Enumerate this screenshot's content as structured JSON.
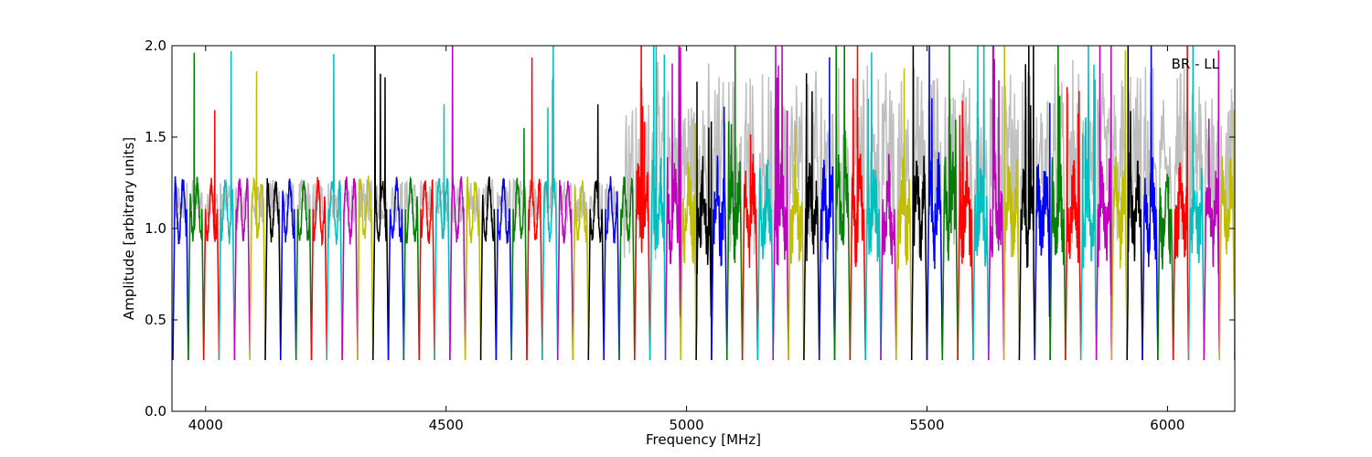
{
  "chart_data": {
    "type": "line",
    "title": "",
    "annotation": "BR - LL",
    "xlabel": "Frequency [MHz]",
    "ylabel": "Amplitude [arbitrary units]",
    "xlim": [
      3930,
      6140
    ],
    "ylim": [
      0.0,
      2.0
    ],
    "xticks": [
      4000,
      4500,
      5000,
      5500,
      6000
    ],
    "yticks": [
      0.0,
      0.5,
      1.0,
      1.5,
      2.0
    ],
    "xtick_labels": [
      "4000",
      "4500",
      "5000",
      "5500",
      "6000"
    ],
    "ytick_labels": [
      "0.0",
      "0.5",
      "1.0",
      "1.5",
      "2.0"
    ],
    "grid": false,
    "background_series_color": "#bfbfbf",
    "series_colors": [
      "#0000ff",
      "#008000",
      "#ff0000",
      "#00bfbf",
      "#bf00bf",
      "#bfbf00",
      "#000000"
    ],
    "channel_width_mhz": 32,
    "channel_start_mhz": 3932,
    "channel_band_min": 0.25,
    "channel_band_max": 1.3
  }
}
